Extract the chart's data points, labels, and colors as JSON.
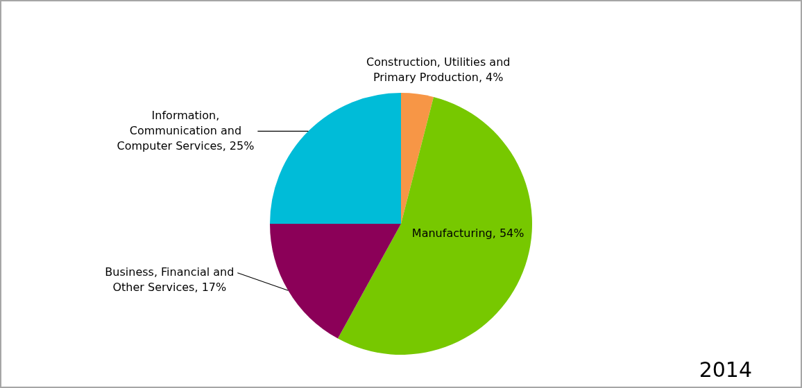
{
  "chart_data": {
    "type": "pie",
    "categories": [
      "Construction, Utilities and Primary Production",
      "Manufacturing",
      "Business, Financial and Other Services",
      "Information, Communication and Computer Services"
    ],
    "values": [
      4,
      54,
      17,
      25
    ],
    "value_labels": [
      "4%",
      "54%",
      "17%",
      "25%"
    ],
    "colors": [
      "#f79646",
      "#77c800",
      "#8b0058",
      "#00bcd8"
    ],
    "legend": false,
    "annotations": [
      "2014"
    ]
  }
}
